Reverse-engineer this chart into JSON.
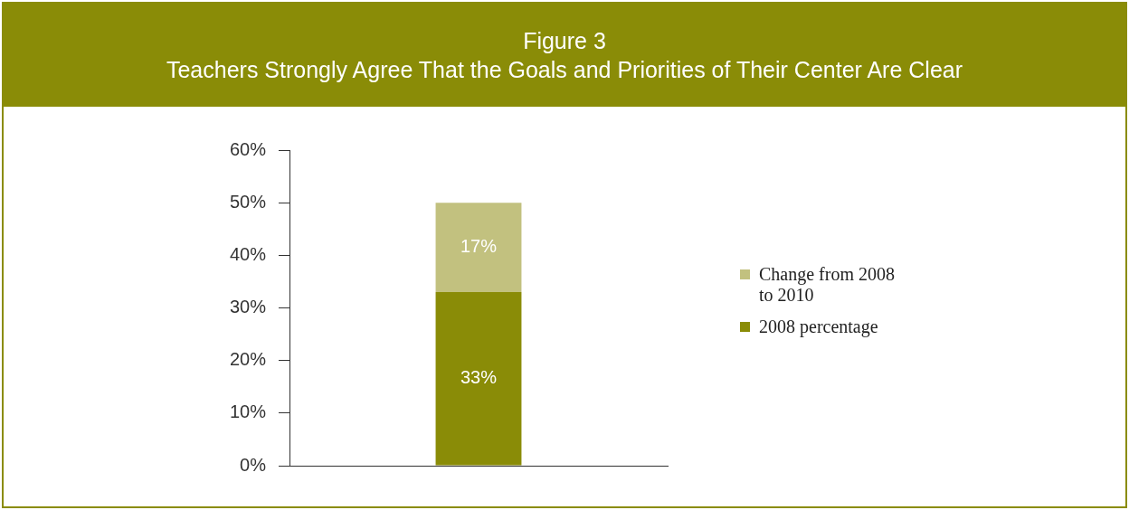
{
  "chart_data": {
    "type": "bar",
    "title": "Figure 3",
    "subtitle": "Teachers Strongly Agree That the Goals and Priorities of Their Center Are Clear",
    "categories": [
      null
    ],
    "stacked": true,
    "series": [
      {
        "name": "2008 percentage",
        "color": "#8a8c07",
        "values": [
          33
        ],
        "value_labels": [
          "33%"
        ]
      },
      {
        "name": "Change from 2008 to 2010",
        "color": "#c2c17f",
        "values": [
          17
        ],
        "value_labels": [
          "17%"
        ]
      }
    ],
    "ylim": [
      0,
      60
    ],
    "yticks": [
      {
        "value": 0,
        "label": "0%"
      },
      {
        "value": 10,
        "label": "10%"
      },
      {
        "value": 20,
        "label": "20%"
      },
      {
        "value": 30,
        "label": "30%"
      },
      {
        "value": 40,
        "label": "40%"
      },
      {
        "value": 50,
        "label": "50%"
      },
      {
        "value": 60,
        "label": "60%"
      }
    ],
    "grid": false,
    "legend": "right"
  }
}
